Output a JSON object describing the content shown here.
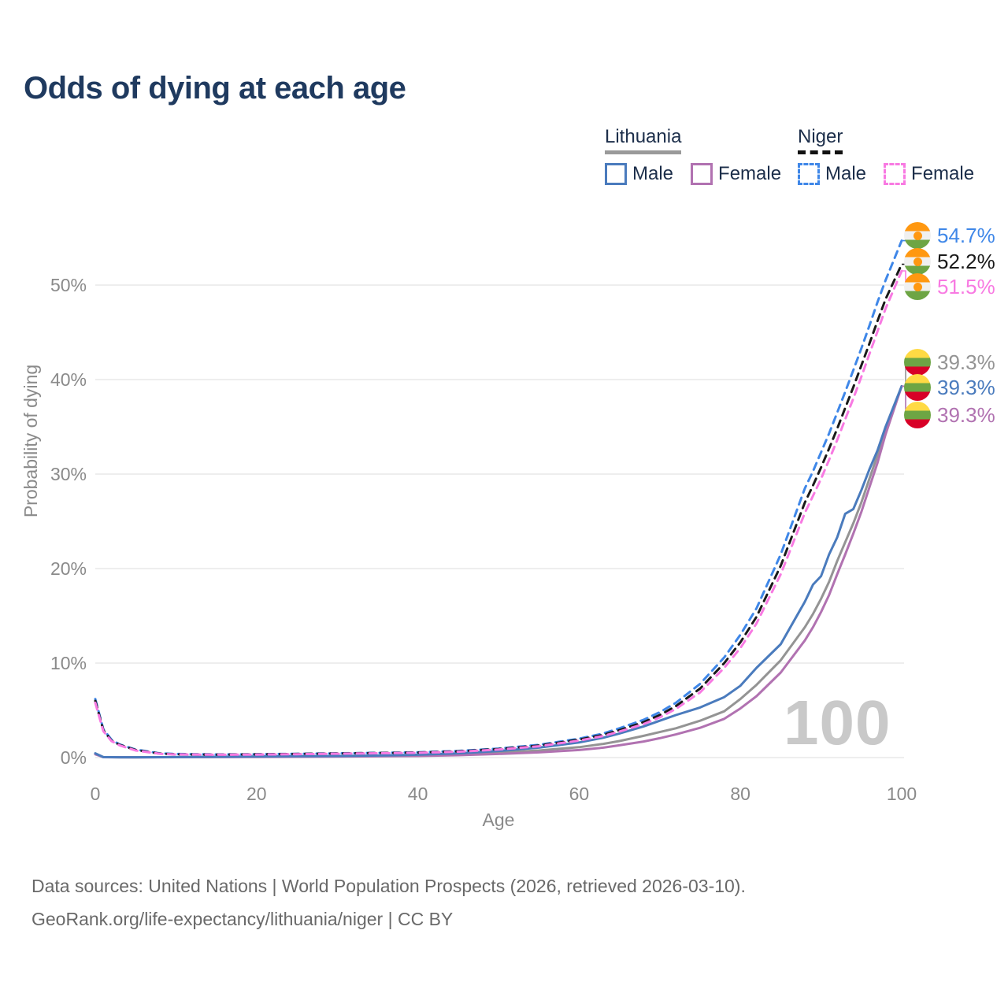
{
  "title": "Odds of dying at each age",
  "legend": {
    "groups": [
      {
        "label": "Lithuania",
        "underline": "solid",
        "items": [
          {
            "label": "Male",
            "series": "lithuania_male"
          },
          {
            "label": "Female",
            "series": "lithuania_female"
          }
        ]
      },
      {
        "label": "Niger",
        "underline": "dashed",
        "items": [
          {
            "label": "Male",
            "series": "niger_male"
          },
          {
            "label": "Female",
            "series": "niger_female"
          }
        ]
      }
    ]
  },
  "watermark": "100",
  "footer": {
    "line1": "Data sources: United Nations | World Population Prospects (2026, retrieved 2026-03-10).",
    "line2": "GeoRank.org/life-expectancy/lithuania/niger | CC BY"
  },
  "colors": {
    "title": "#1f3a5f",
    "legend_text": "#1c2e4a",
    "axis_text": "#8a8a8a",
    "gridline": "#e9e9e9",
    "watermark": "#c9c9c9",
    "footer_text": "#696969",
    "series": {
      "lithuania_male": "#4a7bbd",
      "lithuania_female": "#b172b1",
      "lithuania_total": "#949494",
      "niger_male": "#3f87e8",
      "niger_female": "#f87ae2",
      "niger_total": "#1a1a1a"
    },
    "flags": {
      "lithuania": [
        "#FFDA44",
        "#6DA544",
        "#D80027"
      ],
      "niger": [
        "#FF9811",
        "#F0F0F0",
        "#6DA544"
      ],
      "niger_dot": "#FF9811"
    }
  },
  "chart_data": {
    "type": "line",
    "title": "Odds of dying at each age",
    "xlabel": "Age",
    "ylabel": "Probability of dying",
    "xlim": [
      0,
      100
    ],
    "ylim": [
      0,
      55
    ],
    "grid": "horizontal",
    "legend_position": "top-right",
    "xticks": [
      0,
      20,
      40,
      60,
      80,
      100
    ],
    "yticks": [
      {
        "value": 0,
        "label": "0%"
      },
      {
        "value": 10,
        "label": "10%"
      },
      {
        "value": 20,
        "label": "20%"
      },
      {
        "value": 30,
        "label": "30%"
      },
      {
        "value": 40,
        "label": "40%"
      },
      {
        "value": 50,
        "label": "50%"
      }
    ],
    "x": [
      0,
      1,
      2,
      3,
      5,
      8,
      10,
      15,
      20,
      25,
      30,
      35,
      40,
      45,
      50,
      55,
      60,
      63,
      65,
      68,
      70,
      72,
      75,
      78,
      80,
      82,
      85,
      88,
      89,
      90,
      91,
      92,
      93,
      94,
      95,
      96,
      97,
      98,
      100
    ],
    "series": [
      {
        "name": "Lithuania Total",
        "key": "lithuania_total",
        "dashed": false,
        "values": [
          0.4,
          0.05,
          0.04,
          0.03,
          0.03,
          0.04,
          0.05,
          0.07,
          0.09,
          0.11,
          0.14,
          0.18,
          0.24,
          0.35,
          0.52,
          0.75,
          1.1,
          1.45,
          1.75,
          2.3,
          2.7,
          3.1,
          3.9,
          4.9,
          6.2,
          7.7,
          10.3,
          13.8,
          15.2,
          16.8,
          18.6,
          20.8,
          22.8,
          24.8,
          27.0,
          29.5,
          32.0,
          34.8,
          39.3
        ]
      },
      {
        "name": "Lithuania Female",
        "key": "lithuania_female",
        "dashed": false,
        "values": [
          0.35,
          0.04,
          0.03,
          0.03,
          0.02,
          0.03,
          0.04,
          0.05,
          0.06,
          0.08,
          0.1,
          0.13,
          0.17,
          0.25,
          0.38,
          0.55,
          0.8,
          1.05,
          1.3,
          1.7,
          2.05,
          2.45,
          3.15,
          4.1,
          5.2,
          6.5,
          9.0,
          12.4,
          13.8,
          15.4,
          17.2,
          19.4,
          21.5,
          23.7,
          26.0,
          28.6,
          31.2,
          34.2,
          39.3
        ]
      },
      {
        "name": "Lithuania Male",
        "key": "lithuania_male",
        "dashed": false,
        "values": [
          0.45,
          0.05,
          0.04,
          0.03,
          0.03,
          0.04,
          0.05,
          0.08,
          0.12,
          0.14,
          0.17,
          0.22,
          0.3,
          0.45,
          0.7,
          1.05,
          1.6,
          2.1,
          2.55,
          3.3,
          3.9,
          4.5,
          5.3,
          6.4,
          7.6,
          9.5,
          12.0,
          16.5,
          18.3,
          19.2,
          21.5,
          23.3,
          25.8,
          26.3,
          28.3,
          30.5,
          32.5,
          35.0,
          39.3
        ]
      },
      {
        "name": "Niger Male",
        "key": "niger_male",
        "dashed": true,
        "values": [
          6.2,
          3.0,
          1.9,
          1.4,
          0.85,
          0.45,
          0.38,
          0.33,
          0.36,
          0.4,
          0.45,
          0.5,
          0.56,
          0.7,
          0.95,
          1.35,
          2.0,
          2.55,
          3.1,
          4.0,
          4.8,
          5.8,
          7.8,
          10.6,
          13.0,
          15.8,
          21.5,
          28.5,
          30.3,
          32.3,
          34.3,
          36.5,
          38.7,
          41.0,
          43.3,
          45.7,
          48.2,
          50.5,
          54.7
        ]
      },
      {
        "name": "Niger Total",
        "key": "niger_total",
        "dashed": true,
        "values": [
          6.0,
          2.9,
          1.8,
          1.35,
          0.8,
          0.42,
          0.35,
          0.31,
          0.34,
          0.38,
          0.43,
          0.48,
          0.53,
          0.66,
          0.9,
          1.27,
          1.9,
          2.4,
          2.9,
          3.75,
          4.5,
          5.45,
          7.3,
          10.0,
          12.2,
          14.9,
          20.3,
          27.0,
          28.8,
          30.7,
          32.7,
          34.8,
          37.0,
          39.2,
          41.5,
          43.8,
          46.2,
          48.5,
          52.2
        ]
      },
      {
        "name": "Niger Female",
        "key": "niger_female",
        "dashed": true,
        "values": [
          5.8,
          2.8,
          1.75,
          1.3,
          0.75,
          0.4,
          0.33,
          0.3,
          0.32,
          0.36,
          0.41,
          0.46,
          0.51,
          0.62,
          0.85,
          1.2,
          1.8,
          2.28,
          2.75,
          3.55,
          4.25,
          5.15,
          6.9,
          9.5,
          11.6,
          14.2,
          19.4,
          25.9,
          27.7,
          29.5,
          31.5,
          33.6,
          35.8,
          38.0,
          40.3,
          42.7,
          45.1,
          47.5,
          51.5
        ]
      }
    ],
    "end_labels": [
      {
        "series": "niger_male",
        "flag": "niger",
        "value": 54.7,
        "text": "54.7%"
      },
      {
        "series": "niger_total",
        "flag": "niger",
        "value": 52.2,
        "text": "52.2%"
      },
      {
        "series": "niger_female",
        "flag": "niger",
        "value": 51.5,
        "text": "51.5%"
      },
      {
        "series": "lithuania_total",
        "flag": "lithuania",
        "value": 39.3,
        "text": "39.3%"
      },
      {
        "series": "lithuania_male",
        "flag": "lithuania",
        "value": 39.3,
        "text": "39.3%"
      },
      {
        "series": "lithuania_female",
        "flag": "lithuania",
        "value": 39.3,
        "text": "39.3%"
      }
    ]
  }
}
